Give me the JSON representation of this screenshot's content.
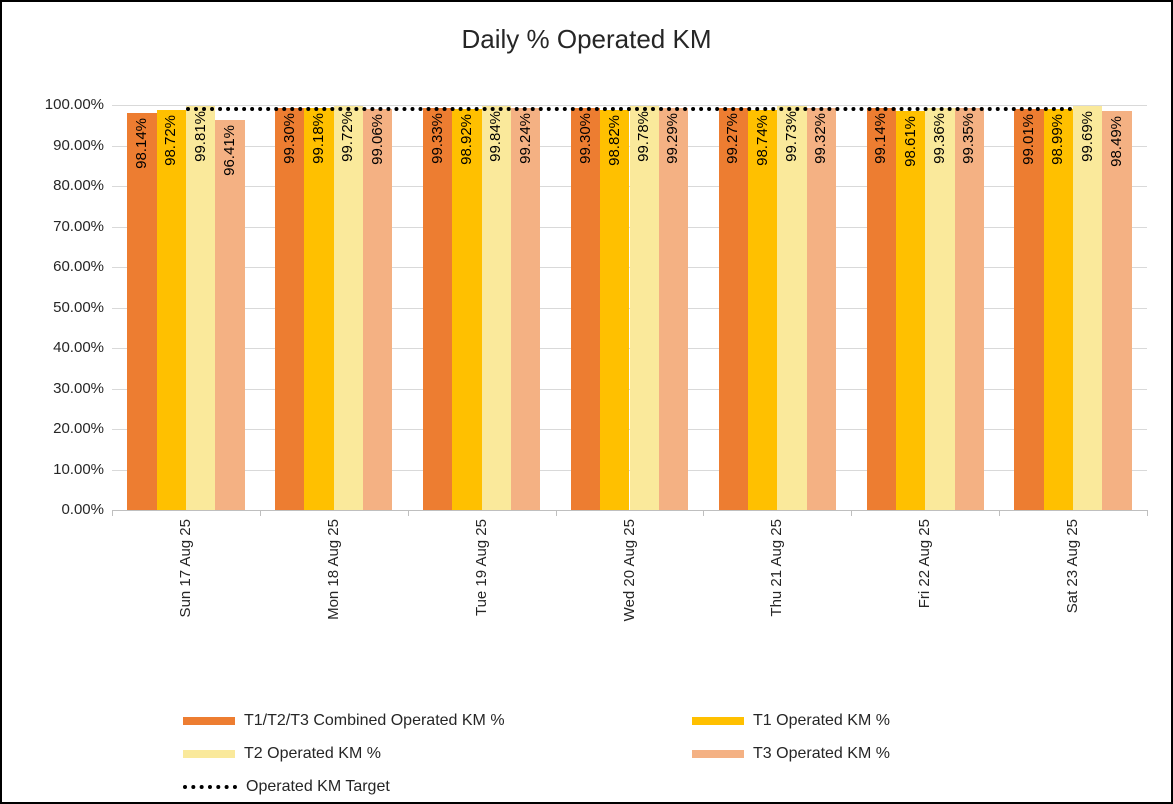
{
  "title": "Daily % Operated KM",
  "colors": {
    "combined": "#ED7D31",
    "t1": "#FFC000",
    "t2": "#FAE99B",
    "t3": "#F4B183",
    "target": "#000000",
    "gridline": "#D9D9D9",
    "axis": "#BFBFBF"
  },
  "chart_data": {
    "type": "bar",
    "title": "Daily % Operated KM",
    "categories": [
      "Sun 17 Aug 25",
      "Mon 18 Aug 25",
      "Tue 19 Aug 25",
      "Wed 20 Aug 25",
      "Thu 21 Aug 25",
      "Fri 22 Aug 25",
      "Sat 23 Aug 25"
    ],
    "series": [
      {
        "name": "T1/T2/T3 Combined Operated KM %",
        "color": "#ED7D31",
        "values": [
          98.14,
          99.3,
          99.33,
          99.3,
          99.27,
          99.14,
          99.01
        ]
      },
      {
        "name": "T1 Operated KM %",
        "color": "#FFC000",
        "values": [
          98.72,
          99.18,
          98.92,
          98.82,
          98.74,
          98.61,
          98.99
        ]
      },
      {
        "name": "T2 Operated KM %",
        "color": "#FAE99B",
        "values": [
          99.81,
          99.72,
          99.84,
          99.78,
          99.73,
          99.36,
          99.69
        ]
      },
      {
        "name": "T3 Operated KM %",
        "color": "#F4B183",
        "values": [
          96.41,
          99.06,
          99.24,
          99.29,
          99.32,
          99.35,
          98.49
        ]
      }
    ],
    "target_line": {
      "name": "Operated KM Target",
      "value": 99.0,
      "style": "dotted",
      "color": "#000000"
    },
    "y_axis": {
      "min": 0,
      "max": 100,
      "step": 10,
      "tick_labels": [
        "0.00%",
        "10.00%",
        "20.00%",
        "30.00%",
        "40.00%",
        "50.00%",
        "60.00%",
        "70.00%",
        "80.00%",
        "90.00%",
        "100.00%"
      ]
    },
    "data_label_format": "0.00%",
    "grid": true,
    "legend_position": "bottom"
  },
  "legend": {
    "items": [
      {
        "label": "T1/T2/T3 Combined Operated KM %",
        "marker": "bar",
        "color": "#ED7D31"
      },
      {
        "label": "T1 Operated KM %",
        "marker": "bar",
        "color": "#FFC000"
      },
      {
        "label": "T2 Operated KM %",
        "marker": "bar",
        "color": "#FAE99B"
      },
      {
        "label": "T3 Operated KM %",
        "marker": "bar",
        "color": "#F4B183"
      },
      {
        "label": "Operated KM Target",
        "marker": "dotted-line",
        "color": "#000000"
      }
    ]
  }
}
